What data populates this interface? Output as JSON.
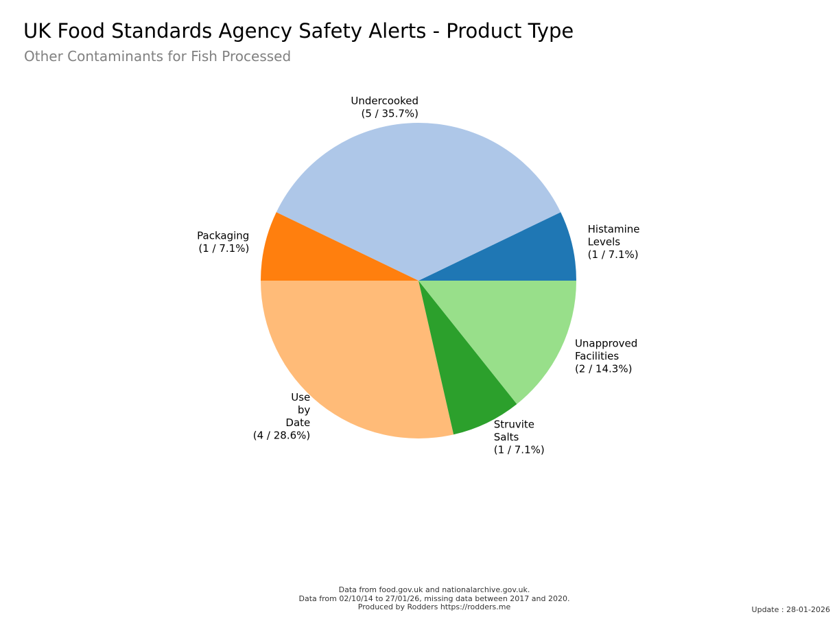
{
  "chart_data": {
    "type": "pie",
    "title": "UK Food Standards Agency Safety Alerts - Product Type",
    "subtitle": "Other Contaminants for Fish Processed",
    "start_angle_deg": 0,
    "direction": "counterclockwise",
    "slices": [
      {
        "name": "Histamine Levels",
        "label_lines": [
          "Histamine",
          "Levels",
          "(1 / 7.1%)"
        ],
        "value": 1,
        "percent": 7.1,
        "color": "#1f77b4",
        "label_side": "left"
      },
      {
        "name": "Undercooked",
        "label_lines": [
          "Undercooked",
          "(5 / 35.7%)"
        ],
        "value": 5,
        "percent": 35.7,
        "color": "#aec7e8",
        "label_side": "right"
      },
      {
        "name": "Packaging",
        "label_lines": [
          "Packaging",
          "(1 / 7.1%)"
        ],
        "value": 1,
        "percent": 7.1,
        "color": "#ff7f0e",
        "label_side": "right"
      },
      {
        "name": "Use by Date",
        "label_lines": [
          "Use",
          "by",
          "Date",
          "(4 / 28.6%)"
        ],
        "value": 4,
        "percent": 28.6,
        "color": "#ffbb78",
        "label_side": "right"
      },
      {
        "name": "Struvite Salts",
        "label_lines": [
          "Struvite",
          "Salts",
          "(1 / 7.1%)"
        ],
        "value": 1,
        "percent": 7.1,
        "color": "#2ca02c",
        "label_side": "left"
      },
      {
        "name": "Unapproved Facilities",
        "label_lines": [
          "Unapproved",
          "Facilities",
          "(2 / 14.3%)"
        ],
        "value": 2,
        "percent": 14.3,
        "color": "#98df8a",
        "label_side": "left"
      }
    ]
  },
  "footer": {
    "line1": "Data from food.gov.uk and nationalarchive.gov.uk.",
    "line2": "Data from 02/10/14 to 27/01/26, missing data between 2017 and 2020.",
    "line3": "Produced by Rodders https://rodders.me"
  },
  "update": "Update : 28-01-2026"
}
